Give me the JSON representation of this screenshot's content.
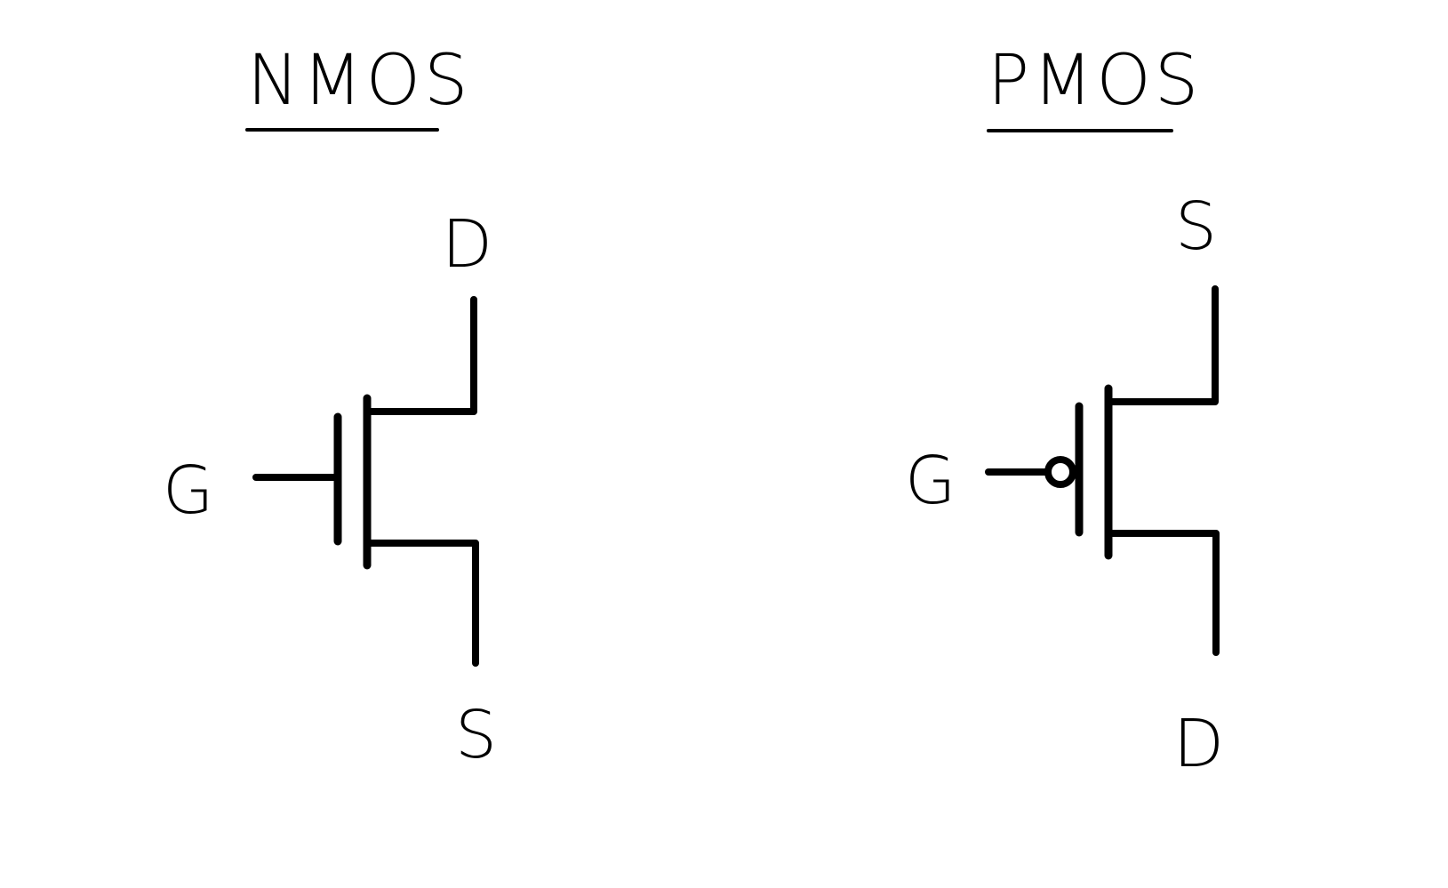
{
  "nmos": {
    "title": "NMOS",
    "gate_label": "G",
    "drain_label": "D",
    "source_label": "S"
  },
  "pmos": {
    "title": "PMOS",
    "gate_label": "G",
    "drain_label": "D",
    "source_label": "S"
  },
  "colors": {
    "ink": "#000000",
    "background": "#ffffff"
  }
}
